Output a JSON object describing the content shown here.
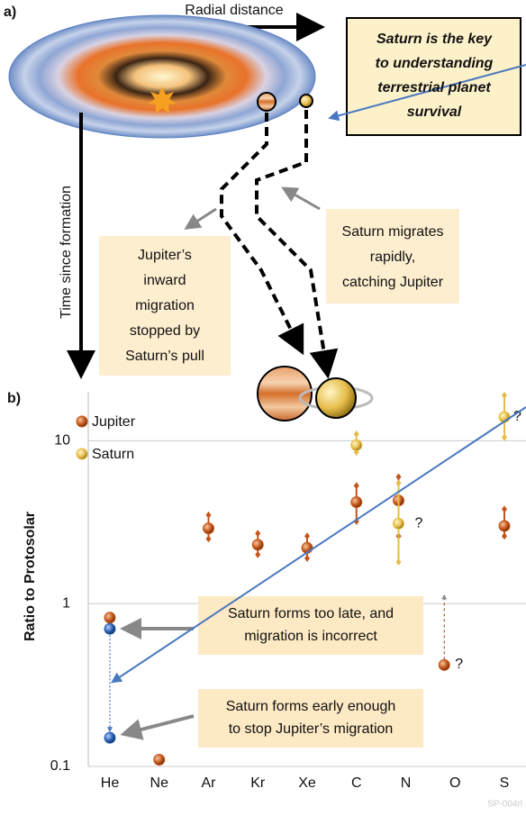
{
  "panel_a": {
    "label": "a)",
    "x_axis_label": "Radial distance",
    "y_axis_label": "Time since formation",
    "callout": [
      "Saturn is the key",
      "to understanding",
      "terrestrial planet",
      "survival"
    ],
    "jupiter_note": [
      "Jupiter’s",
      "inward",
      "migration",
      "stopped by",
      "Saturn’s pull"
    ],
    "saturn_note": [
      "Saturn migrates",
      "rapidly,",
      "catching Jupiter"
    ]
  },
  "chart_data": {
    "type": "scatter",
    "panel_label": "b)",
    "y_label": "Ratio to Protosolar",
    "log_scale": true,
    "categories": [
      "He",
      "Ne",
      "Ar",
      "Kr",
      "Xe",
      "C",
      "N",
      "O",
      "S"
    ],
    "ylim": [
      0.1,
      20
    ],
    "yticks": [
      {
        "value": 0.1,
        "label": "0.1"
      },
      1,
      10
    ],
    "grid": true,
    "legend": "upper left",
    "series": [
      {
        "name": "Jupiter",
        "color": "#c2561c",
        "values": [
          0.82,
          0.11,
          2.9,
          2.3,
          2.2,
          4.2,
          4.3,
          0.42,
          3.0
        ],
        "lower": [
          null,
          null,
          2.5,
          2.0,
          1.9,
          3.2,
          2.6,
          null,
          2.6
        ],
        "upper": [
          null,
          null,
          3.5,
          2.7,
          2.6,
          5.3,
          6.0,
          null,
          3.8
        ]
      },
      {
        "name": "Saturn",
        "color": "#e6bd4a",
        "values": [
          null,
          null,
          null,
          null,
          null,
          9.4,
          3.1,
          null,
          14
        ],
        "lower": [
          null,
          null,
          null,
          null,
          null,
          8.5,
          1.8,
          null,
          10.5
        ],
        "upper": [
          null,
          null,
          null,
          null,
          null,
          11,
          5.5,
          null,
          19
        ]
      }
    ],
    "scenarios": {
      "color": "#2a5fb0",
      "category": 0,
      "values": [
        0.7,
        0.15
      ],
      "labels": [
        [
          "Saturn forms too late, and",
          "migration is incorrect"
        ],
        [
          "Saturn forms early enough",
          "to stop Jupiter’s migration"
        ]
      ]
    },
    "question_marks": [
      {
        "category": 6,
        "value": 3.1,
        "label": "?"
      },
      {
        "category": 7,
        "value": 0.62,
        "label": "?"
      },
      {
        "category": 8,
        "value": 14,
        "label": "?"
      }
    ],
    "o_upper_limit": 1.1,
    "footer": "SP-004rl"
  }
}
